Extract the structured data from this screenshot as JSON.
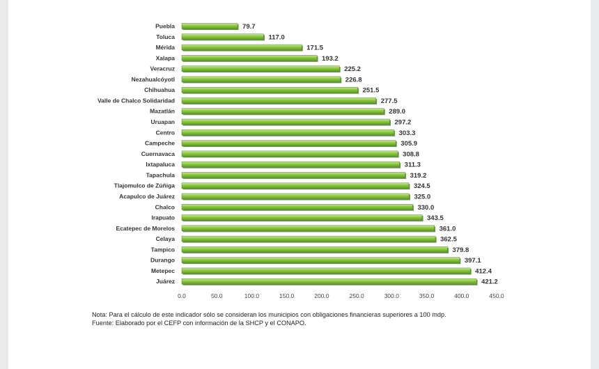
{
  "chart_data": {
    "type": "bar",
    "orientation": "horizontal",
    "categories": [
      "Puebla",
      "Toluca",
      "Mérida",
      "Xalapa",
      "Veracruz",
      "Nezahualcóyotl",
      "Chihuahua",
      "Valle de Chalco Solidaridad",
      "Mazatlán",
      "Uruapan",
      "Centro",
      "Campeche",
      "Cuernavaca",
      "Ixtapaluca",
      "Tapachula",
      "Tlajomulco de Zúñiga",
      "Acapulco de Juárez",
      "Chalco",
      "Irapuato",
      "Ecatepec de Morelos",
      "Celaya",
      "Tampico",
      "Durango",
      "Metepec",
      "Juárez"
    ],
    "values": [
      79.7,
      117.0,
      171.5,
      193.2,
      225.2,
      226.8,
      251.5,
      277.5,
      289.0,
      297.2,
      303.3,
      305.9,
      308.8,
      311.3,
      319.2,
      324.5,
      325.0,
      330.0,
      343.5,
      361.0,
      362.5,
      379.8,
      397.1,
      412.4,
      421.2
    ],
    "value_labels": [
      "79.7",
      "117.0",
      "171.5",
      "193.2",
      "225.2",
      "226.8",
      "251.5",
      "277.5",
      "289.0",
      "297.2",
      "303.3",
      "305.9",
      "308.8",
      "311.3",
      "319.2",
      "324.5",
      "325.0",
      "330.0",
      "343.5",
      "361.0",
      "362.5",
      "379.8",
      "397.1",
      "412.4",
      "421.2"
    ],
    "x_ticks": [
      "0.0",
      "50.0",
      "100.0",
      "150.0",
      "200.0",
      "250.0",
      "300.0",
      "350.0",
      "400.0",
      "450.0"
    ],
    "xlim": [
      0,
      450
    ],
    "grid": false,
    "bar_color": "#8dc63f",
    "bar_shadow_color": "#3f6e1f"
  },
  "notes": {
    "note": "Nota: Para el cálculo de este indicador sólo se consideran los municipios con obligaciones financieras superiores a 100 mdp.",
    "source": "Fuente:  Elaborado por el CEFP con información de la SHCP y el CONAPO."
  }
}
